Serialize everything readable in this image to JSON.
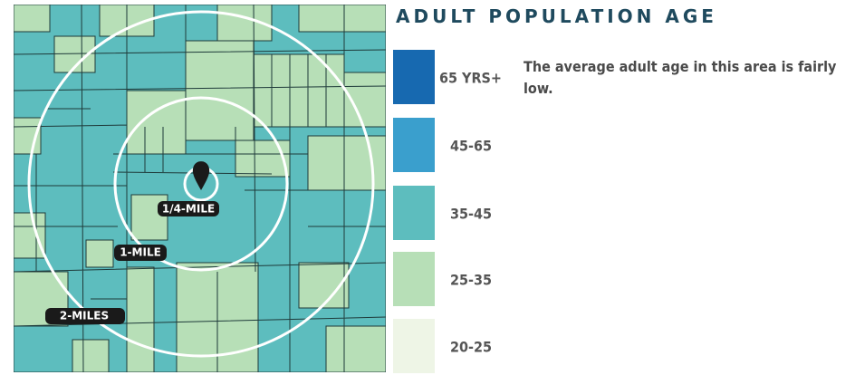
{
  "title": "ADULT POPULATION AGE",
  "description": "The average adult age in this area is fairly low.",
  "legend": [
    {
      "label": "65 YRS+",
      "color": "#1769b0"
    },
    {
      "label": "45-65",
      "color": "#3a9fcd"
    },
    {
      "label": "35-45",
      "color": "#5dbdbe"
    },
    {
      "label": "25-35",
      "color": "#b7dfb7"
    },
    {
      "label": "20-25",
      "color": "#eef5e6"
    }
  ],
  "rings": [
    "1/4-MILE",
    "1-MILE",
    "2-MILES"
  ]
}
